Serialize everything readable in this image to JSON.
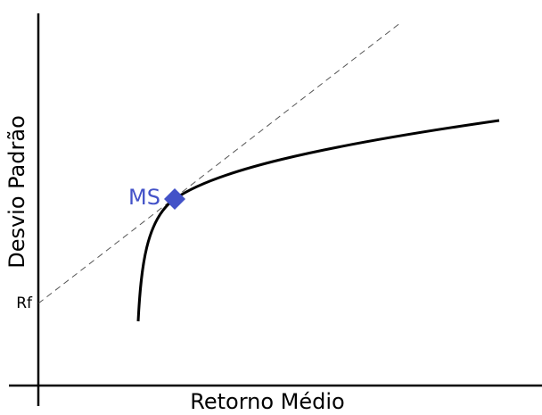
{
  "x_axis_label": "Retorno Médio",
  "y_axis_label": "Desvio Padrão",
  "labels": {
    "rf": "Rf",
    "ms": "MS"
  }
}
